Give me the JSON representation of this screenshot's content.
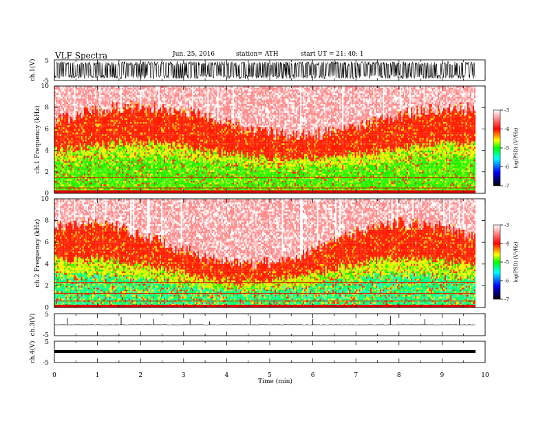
{
  "header": {
    "title": "VLF Spectra",
    "date": "Jun. 25, 2016",
    "station": "station= ATH",
    "start": "start UT = 21: 40: 1"
  },
  "colors": {
    "spectrum_scale": [
      "#000000",
      "#0000ff",
      "#00ffff",
      "#00ff00",
      "#ffff00",
      "#ff0000",
      "#ffffff"
    ]
  },
  "chart_data": [
    {
      "type": "line",
      "panel": "ch1-waveform",
      "ylabel": "ch.1(V)",
      "ylim": [
        -5,
        5
      ],
      "yticks": [
        "5",
        "-5"
      ],
      "xlim": [
        0,
        10
      ],
      "note_amplitude": [
        -4.2,
        4.2
      ]
    },
    {
      "type": "heatmap",
      "panel": "ch1-spectrogram",
      "ylabel": "ch.1 Frequency (kHz)",
      "ylim": [
        0,
        10
      ],
      "yticks": [
        "0",
        "2",
        "4",
        "6",
        "8",
        "10"
      ],
      "xlim": [
        0,
        10
      ],
      "colorbar": {
        "label": "log(PSD) (V²/Hz)",
        "range": [
          -7,
          -3
        ],
        "ticks": [
          "-3",
          "-4",
          "-5",
          "-6",
          "-7"
        ]
      }
    },
    {
      "type": "heatmap",
      "panel": "ch2-spectrogram",
      "ylabel": "ch.2 Frequency (kHz)",
      "ylim": [
        0,
        10
      ],
      "yticks": [
        "0",
        "2",
        "4",
        "6",
        "8",
        "10"
      ],
      "xlim": [
        0,
        10
      ],
      "colorbar": {
        "label": "log(PSD) (V²/Hz)",
        "range": [
          -7,
          -3
        ],
        "ticks": [
          "-3",
          "-4",
          "-5",
          "-6",
          "-7"
        ]
      }
    },
    {
      "type": "line",
      "panel": "ch3-waveform",
      "ylabel": "ch.3(V)",
      "ylim": [
        -5,
        5
      ],
      "yticks": [
        "5",
        "-5"
      ],
      "xlim": [
        0,
        10
      ],
      "spikes_min": [
        0.3,
        1.55,
        2.3,
        3.15,
        3.6,
        4.55,
        6.0,
        7.8,
        8.6,
        9.4
      ]
    },
    {
      "type": "line",
      "panel": "ch4-waveform",
      "ylabel": "ch.4(V)",
      "ylim": [
        -5,
        5
      ],
      "yticks": [
        "5",
        "-5"
      ],
      "xlim": [
        0,
        10
      ],
      "level": 0
    }
  ],
  "xaxis": {
    "label": "Time (min)",
    "ticks": [
      "0",
      "1",
      "2",
      "3",
      "4",
      "5",
      "6",
      "7",
      "8",
      "9",
      "10"
    ]
  }
}
